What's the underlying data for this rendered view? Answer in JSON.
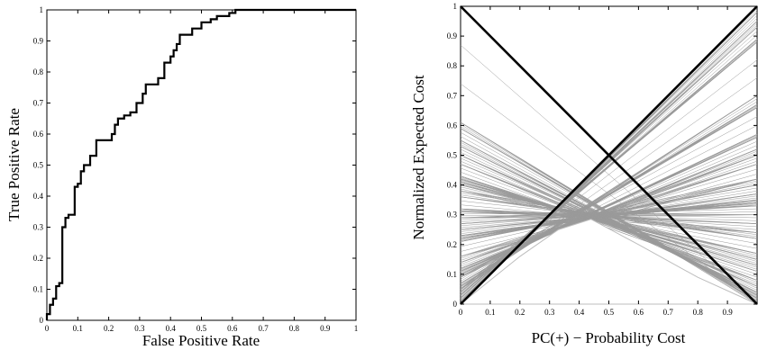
{
  "chart_data": [
    {
      "type": "line",
      "title": "",
      "xlabel": "False Positive Rate",
      "ylabel": "True Positive Rate",
      "xlim": [
        0,
        1
      ],
      "ylim": [
        0,
        1
      ],
      "grid": false,
      "xticks": [
        "0",
        "0.1",
        "0.2",
        "0.3",
        "0.4",
        "0.5",
        "0.6",
        "0.7",
        "0.8",
        "0.9",
        "1"
      ],
      "yticks": [
        "0",
        "0.1",
        "0.2",
        "0.3",
        "0.4",
        "0.5",
        "0.6",
        "0.7",
        "0.8",
        "0.9",
        "1"
      ],
      "series": [
        {
          "color": "#000000",
          "points": [
            [
              0,
              0
            ],
            [
              0,
              0.02
            ],
            [
              0.01,
              0.02
            ],
            [
              0.01,
              0.05
            ],
            [
              0.02,
              0.05
            ],
            [
              0.02,
              0.07
            ],
            [
              0.03,
              0.07
            ],
            [
              0.03,
              0.11
            ],
            [
              0.04,
              0.11
            ],
            [
              0.04,
              0.12
            ],
            [
              0.05,
              0.12
            ],
            [
              0.05,
              0.3
            ],
            [
              0.06,
              0.3
            ],
            [
              0.06,
              0.33
            ],
            [
              0.07,
              0.33
            ],
            [
              0.07,
              0.34
            ],
            [
              0.09,
              0.34
            ],
            [
              0.09,
              0.43
            ],
            [
              0.1,
              0.43
            ],
            [
              0.1,
              0.44
            ],
            [
              0.11,
              0.44
            ],
            [
              0.11,
              0.48
            ],
            [
              0.12,
              0.48
            ],
            [
              0.12,
              0.5
            ],
            [
              0.14,
              0.5
            ],
            [
              0.14,
              0.53
            ],
            [
              0.16,
              0.53
            ],
            [
              0.16,
              0.58
            ],
            [
              0.21,
              0.58
            ],
            [
              0.21,
              0.6
            ],
            [
              0.22,
              0.6
            ],
            [
              0.22,
              0.63
            ],
            [
              0.23,
              0.63
            ],
            [
              0.23,
              0.65
            ],
            [
              0.25,
              0.65
            ],
            [
              0.25,
              0.66
            ],
            [
              0.27,
              0.66
            ],
            [
              0.27,
              0.67
            ],
            [
              0.29,
              0.67
            ],
            [
              0.29,
              0.7
            ],
            [
              0.31,
              0.7
            ],
            [
              0.31,
              0.73
            ],
            [
              0.32,
              0.73
            ],
            [
              0.32,
              0.76
            ],
            [
              0.36,
              0.76
            ],
            [
              0.36,
              0.78
            ],
            [
              0.38,
              0.78
            ],
            [
              0.38,
              0.83
            ],
            [
              0.4,
              0.83
            ],
            [
              0.4,
              0.85
            ],
            [
              0.41,
              0.85
            ],
            [
              0.41,
              0.87
            ],
            [
              0.42,
              0.87
            ],
            [
              0.42,
              0.89
            ],
            [
              0.43,
              0.89
            ],
            [
              0.43,
              0.92
            ],
            [
              0.47,
              0.92
            ],
            [
              0.47,
              0.94
            ],
            [
              0.5,
              0.94
            ],
            [
              0.5,
              0.96
            ],
            [
              0.53,
              0.96
            ],
            [
              0.53,
              0.97
            ],
            [
              0.55,
              0.97
            ],
            [
              0.55,
              0.98
            ],
            [
              0.59,
              0.98
            ],
            [
              0.59,
              0.99
            ],
            [
              0.61,
              0.99
            ],
            [
              0.61,
              1.0
            ],
            [
              1.0,
              1.0
            ]
          ]
        }
      ]
    },
    {
      "type": "line",
      "title": "",
      "xlabel": "PC(+) − Probability Cost",
      "ylabel": "Normalized Expected Cost",
      "xlim": [
        0,
        1
      ],
      "ylim": [
        0,
        1
      ],
      "grid": false,
      "xticks": [
        "0",
        "0.1",
        "0.2",
        "0.3",
        "0.4",
        "0.5",
        "0.6",
        "0.7",
        "0.8",
        "0.9"
      ],
      "yticks": [
        "0",
        "0.1",
        "0.2",
        "0.3",
        "0.4",
        "0.5",
        "0.6",
        "0.7",
        "0.8",
        "0.9",
        "1"
      ],
      "series": [
        {
          "color": "#000000",
          "points": [
            [
              0,
              1
            ],
            [
              1,
              0
            ]
          ]
        },
        {
          "color": "#000000",
          "points": [
            [
              0,
              0
            ],
            [
              1,
              1
            ]
          ]
        }
      ],
      "cost_lines": {
        "color": "#9a9a9a",
        "description_source": "one gray line per ROC point, from (0, FPR) to (1, 1 - TPR)"
      },
      "lower_envelope": {
        "color": "#ffffff",
        "points": [
          [
            0,
            0
          ],
          [
            0.2,
            0.16
          ],
          [
            0.33,
            0.25
          ],
          [
            0.44,
            0.285
          ],
          [
            0.6,
            0.2
          ],
          [
            0.8,
            0.09
          ],
          [
            1,
            0
          ]
        ]
      }
    }
  ]
}
